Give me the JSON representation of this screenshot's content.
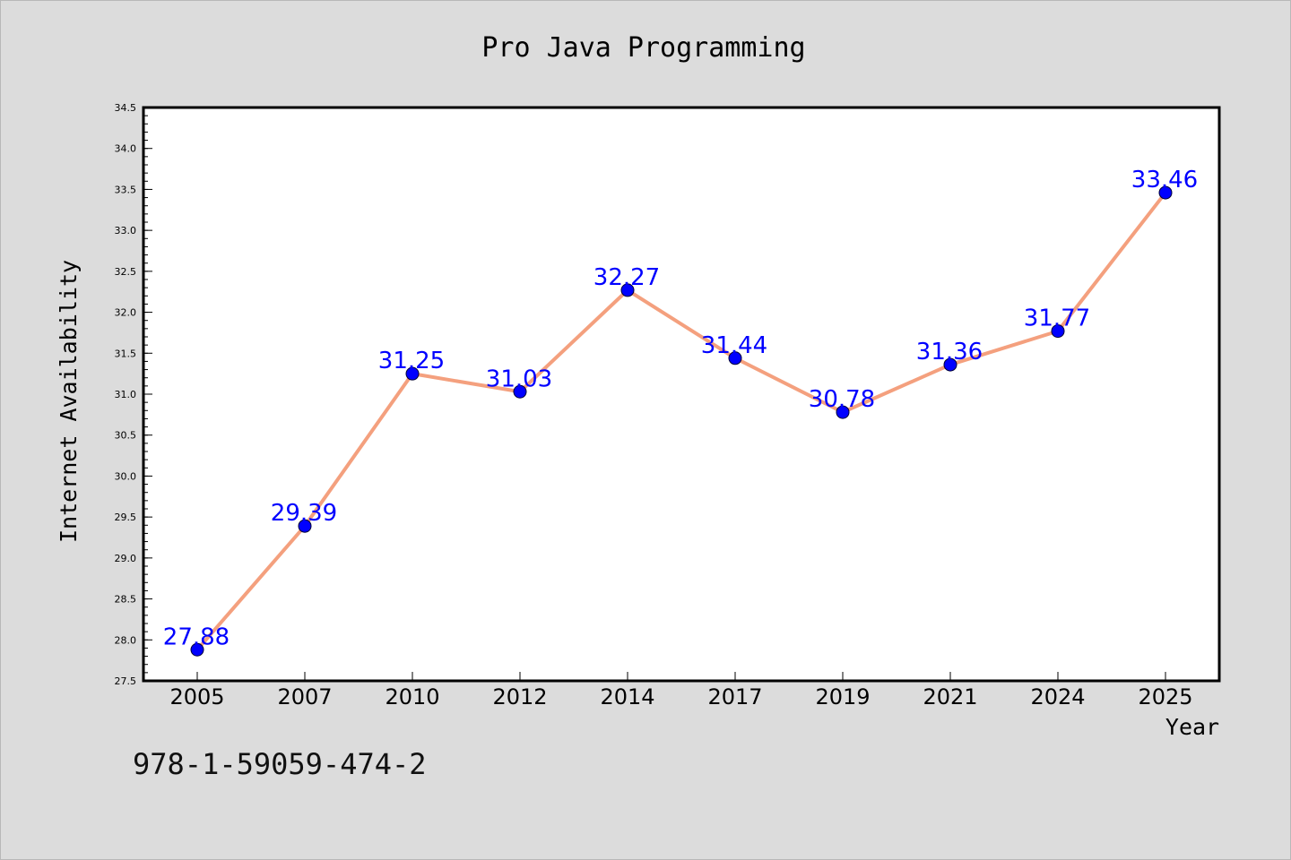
{
  "chart_data": {
    "type": "line",
    "title": "Pro Java Programming",
    "xlabel": "Year",
    "ylabel": "Internet Availability",
    "categories": [
      "2005",
      "2007",
      "2010",
      "2012",
      "2014",
      "2017",
      "2019",
      "2021",
      "2024",
      "2025"
    ],
    "series": [
      {
        "values": [
          27.88,
          29.39,
          31.25,
          31.03,
          32.27,
          31.44,
          30.78,
          31.36,
          31.77,
          33.46
        ]
      }
    ],
    "value_labels": [
      "27.88",
      "29.39",
      "31.25",
      "31.03",
      "32.27",
      "31.44",
      "30.78",
      "31.36",
      "31.77",
      "33.46"
    ],
    "ylim": [
      27.5,
      34.5
    ],
    "yticks": [
      "27.5",
      "28.0",
      "28.5",
      "29.0",
      "29.5",
      "30.0",
      "30.5",
      "31.0",
      "31.5",
      "32.0",
      "32.5",
      "33.0",
      "33.5",
      "34.0",
      "34.5"
    ],
    "grid": false,
    "legend": "none",
    "line_color": "#f4a07e",
    "marker_color": "#0000ff",
    "label_color": "#0000ff"
  },
  "footer": {
    "isbn": "978-1-59059-474-2"
  }
}
